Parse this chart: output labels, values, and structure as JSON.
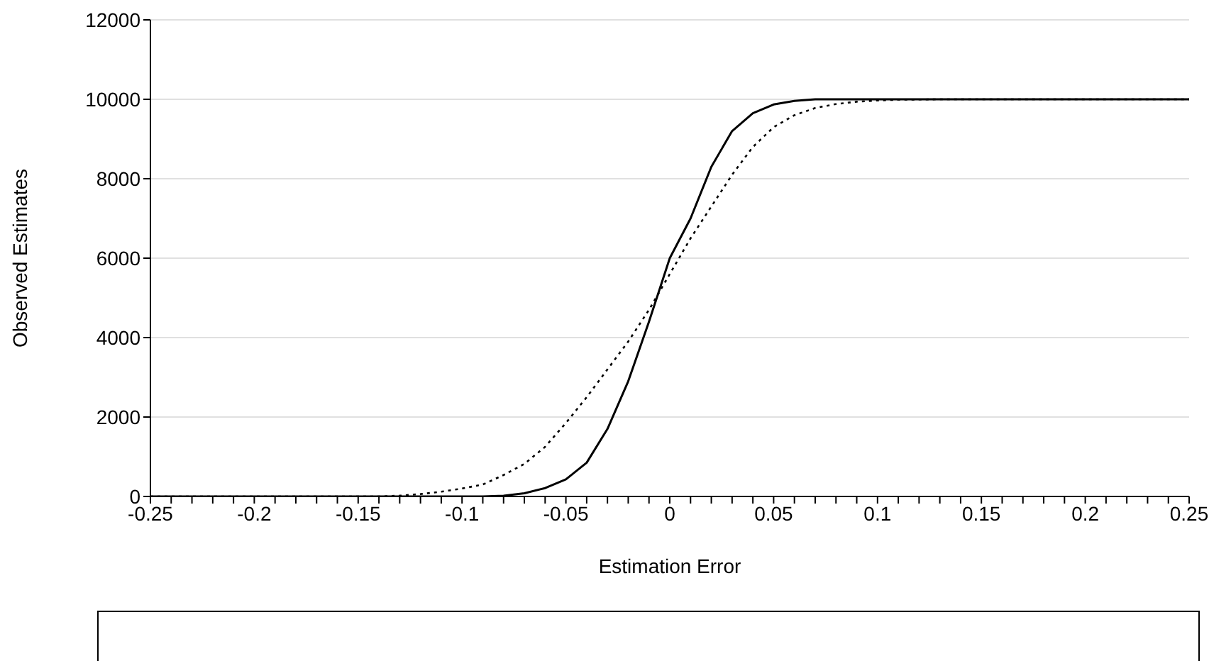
{
  "chart_data": {
    "type": "line",
    "xlabel": "Estimation Error",
    "ylabel": "Observed Estimates",
    "xlim": [
      -0.25,
      0.25
    ],
    "ylim": [
      0,
      12000
    ],
    "yticks": [
      0,
      2000,
      4000,
      6000,
      8000,
      10000,
      12000
    ],
    "xticks": [
      -0.25,
      {
        "value": -0.24,
        "label": null
      },
      {
        "value": -0.23,
        "label": null
      },
      {
        "value": -0.22,
        "label": null
      },
      {
        "value": -0.21,
        "label": null
      },
      -0.2,
      {
        "value": -0.19,
        "label": null
      },
      {
        "value": -0.18,
        "label": null
      },
      {
        "value": -0.17,
        "label": null
      },
      {
        "value": -0.16,
        "label": null
      },
      -0.15,
      {
        "value": -0.14,
        "label": null
      },
      {
        "value": -0.13,
        "label": null
      },
      {
        "value": -0.12,
        "label": null
      },
      {
        "value": -0.11,
        "label": null
      },
      -0.1,
      {
        "value": -0.09,
        "label": null
      },
      {
        "value": -0.08,
        "label": null
      },
      {
        "value": -0.07,
        "label": null
      },
      {
        "value": -0.06,
        "label": null
      },
      -0.05,
      {
        "value": -0.04,
        "label": null
      },
      {
        "value": -0.03,
        "label": null
      },
      {
        "value": -0.02,
        "label": null
      },
      {
        "value": -0.01,
        "label": null
      },
      0,
      {
        "value": 0.01,
        "label": null
      },
      {
        "value": 0.02,
        "label": null
      },
      {
        "value": 0.03,
        "label": null
      },
      {
        "value": 0.04,
        "label": null
      },
      0.05,
      {
        "value": 0.06,
        "label": null
      },
      {
        "value": 0.07,
        "label": null
      },
      {
        "value": 0.08,
        "label": null
      },
      {
        "value": 0.09,
        "label": null
      },
      0.1,
      {
        "value": 0.11,
        "label": null
      },
      {
        "value": 0.12,
        "label": null
      },
      {
        "value": 0.13,
        "label": null
      },
      {
        "value": 0.14,
        "label": null
      },
      0.15,
      {
        "value": 0.16,
        "label": null
      },
      {
        "value": 0.17,
        "label": null
      },
      {
        "value": 0.18,
        "label": null
      },
      {
        "value": 0.19,
        "label": null
      },
      0.2,
      {
        "value": 0.21,
        "label": null
      },
      {
        "value": 0.22,
        "label": null
      },
      {
        "value": 0.23,
        "label": null
      },
      {
        "value": 0.24,
        "label": null
      },
      0.25
    ],
    "grid": "y",
    "marker": "none",
    "series": [
      {
        "color": "#000000",
        "line_style": "solid",
        "x": [
          -0.25,
          -0.1,
          -0.09,
          -0.08,
          -0.07,
          -0.06,
          -0.05,
          -0.04,
          -0.03,
          -0.02,
          -0.01,
          0,
          0.01,
          0.02,
          0.03,
          0.04,
          0.05,
          0.06,
          0.07,
          0.1,
          0.25
        ],
        "values": [
          0,
          0,
          0,
          20,
          80,
          210,
          430,
          850,
          1700,
          2900,
          4400,
          6000,
          7000,
          8300,
          9200,
          9650,
          9870,
          9960,
          10000,
          10000,
          10000
        ]
      },
      {
        "color": "#000000",
        "line_style": "dotted",
        "x": [
          -0.25,
          -0.14,
          -0.13,
          -0.12,
          -0.11,
          -0.1,
          -0.09,
          -0.08,
          -0.07,
          -0.06,
          -0.05,
          -0.04,
          -0.03,
          -0.02,
          -0.01,
          0,
          0.01,
          0.02,
          0.03,
          0.04,
          0.05,
          0.06,
          0.07,
          0.08,
          0.09,
          0.1,
          0.11,
          0.13,
          0.25
        ],
        "values": [
          0,
          0,
          20,
          60,
          120,
          200,
          300,
          540,
          820,
          1250,
          1850,
          2500,
          3200,
          3900,
          4700,
          5600,
          6500,
          7300,
          8100,
          8800,
          9300,
          9600,
          9780,
          9880,
          9940,
          9970,
          9990,
          10000,
          10000
        ]
      }
    ]
  }
}
